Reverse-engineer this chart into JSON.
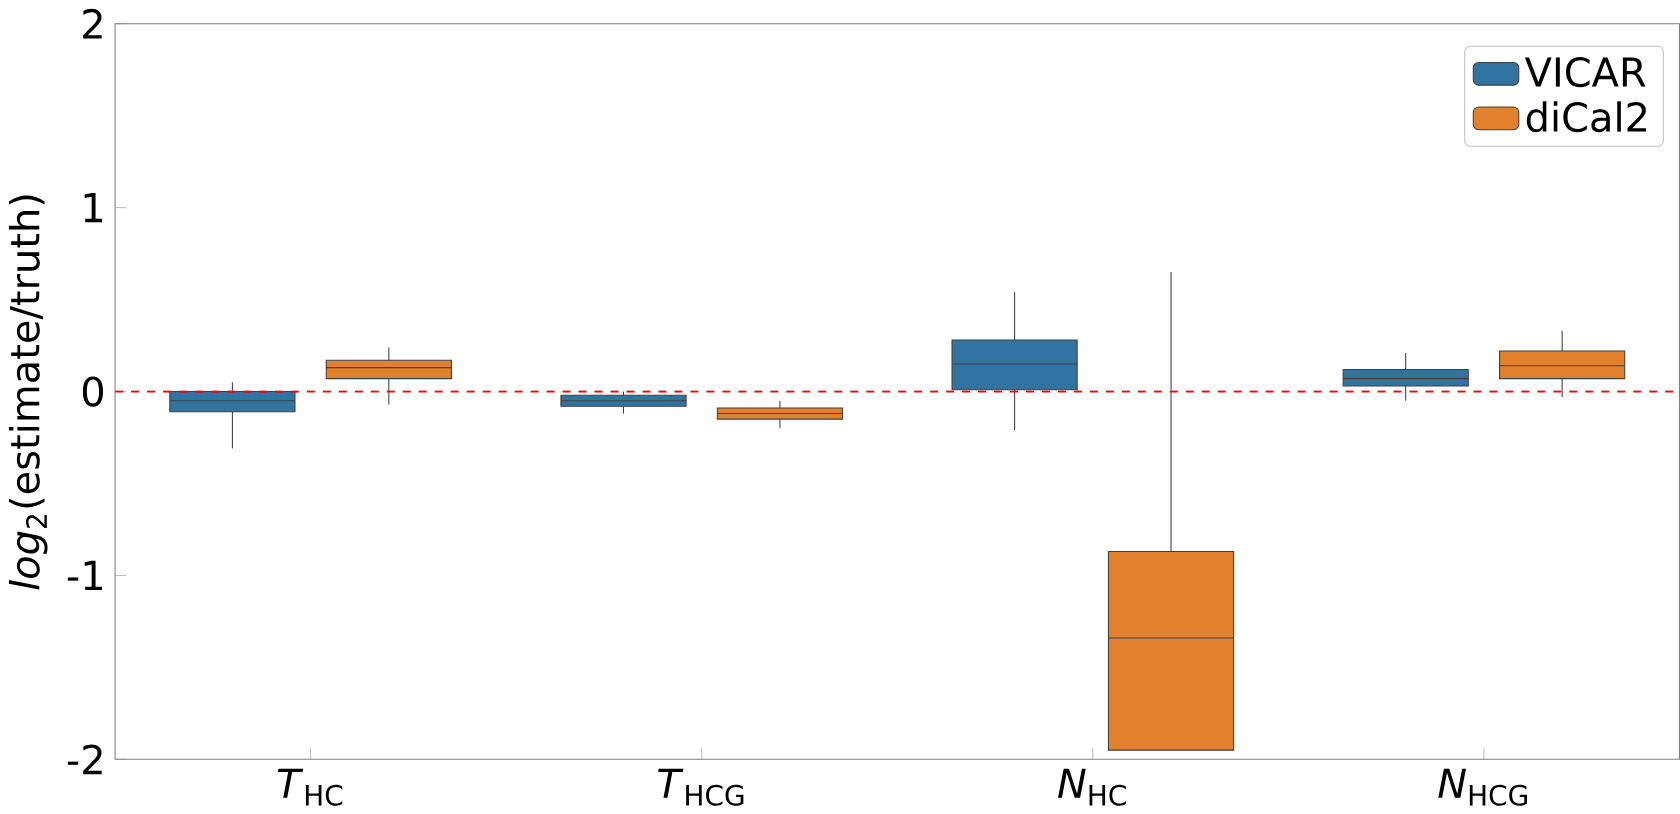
{
  "chart_data": {
    "type": "box",
    "categories": [
      "*T*$_{HC}$",
      "*T*$_{HCG}$",
      "*N*$_{HC}$",
      "*N*$_{HCG}$"
    ],
    "ylabel": "*log*$_{2}$(estimate/truth)",
    "ylim": [
      -2,
      2
    ],
    "yticks": [
      -2,
      -1,
      0,
      1,
      2
    ],
    "series": [
      {
        "name": "VICAR",
        "color": "#3274a1",
        "boxes": [
          {
            "low": -0.31,
            "q1": -0.11,
            "median": -0.05,
            "q3": 0.0,
            "high": 0.05
          },
          {
            "low": -0.12,
            "q1": -0.08,
            "median": -0.05,
            "q3": -0.02,
            "high": 0.0
          },
          {
            "low": -0.21,
            "q1": 0.01,
            "median": 0.15,
            "q3": 0.28,
            "high": 0.54
          },
          {
            "low": -0.05,
            "q1": 0.03,
            "median": 0.07,
            "q3": 0.12,
            "high": 0.21
          }
        ]
      },
      {
        "name": "diCal2",
        "color": "#e1812c",
        "boxes": [
          {
            "low": -0.07,
            "q1": 0.07,
            "median": 0.13,
            "q3": 0.17,
            "high": 0.24
          },
          {
            "low": -0.2,
            "q1": -0.15,
            "median": -0.12,
            "q3": -0.09,
            "high": -0.05
          },
          {
            "low": -1.95,
            "q1": -1.95,
            "median": -1.34,
            "q3": -0.87,
            "high": 0.65
          },
          {
            "low": -0.03,
            "q1": 0.07,
            "median": 0.14,
            "q3": 0.22,
            "high": 0.33
          }
        ]
      }
    ],
    "ref_lines": [
      {
        "axis": "y",
        "value": 0,
        "color": "#ff0000",
        "line_style": "dashed"
      }
    ],
    "legend": "top right",
    "grid": false
  }
}
